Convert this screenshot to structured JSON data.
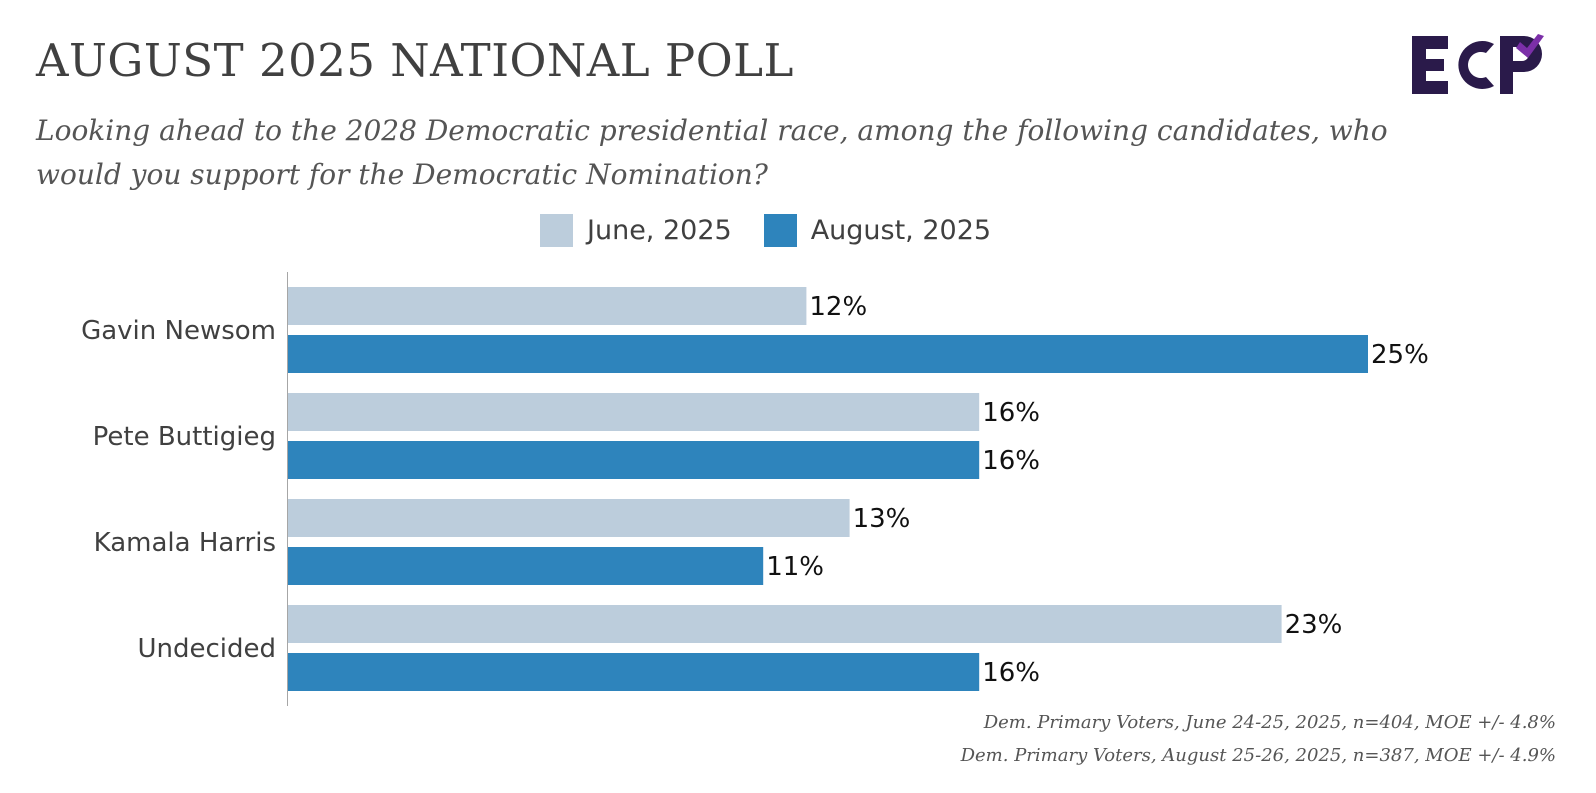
{
  "header": {
    "title": "AUGUST 2025 NATIONAL POLL",
    "subtitle": "Looking ahead to the 2028 Democratic presidential race, among the following candidates, who would you support for the Democratic Nomination?",
    "logo_text": "ECP"
  },
  "colors": {
    "june": "#bccddc",
    "august": "#2e84bc",
    "logo_dark": "#2a1a4a",
    "logo_accent": "#7b2fa8"
  },
  "chart_data": {
    "type": "bar",
    "orientation": "horizontal",
    "categories": [
      "Gavin Newsom",
      "Pete Buttigieg",
      "Kamala Harris",
      "Undecided"
    ],
    "series": [
      {
        "name": "June, 2025",
        "values": [
          12,
          16,
          13,
          23
        ],
        "labels": [
          "12%",
          "16%",
          "13%",
          "23%"
        ]
      },
      {
        "name": "August, 2025",
        "values": [
          25,
          16,
          11,
          16
        ],
        "labels": [
          "25%",
          "16%",
          "11%",
          "16%"
        ]
      }
    ],
    "value_unit": "%",
    "xlim": [
      0,
      25
    ],
    "grid": false,
    "legend_position": "top-center"
  },
  "footnotes": [
    "Dem. Primary Voters, June 24-25, 2025, n=404, MOE +/- 4.8%",
    "Dem. Primary Voters, August 25-26, 2025, n=387, MOE +/- 4.9%"
  ]
}
